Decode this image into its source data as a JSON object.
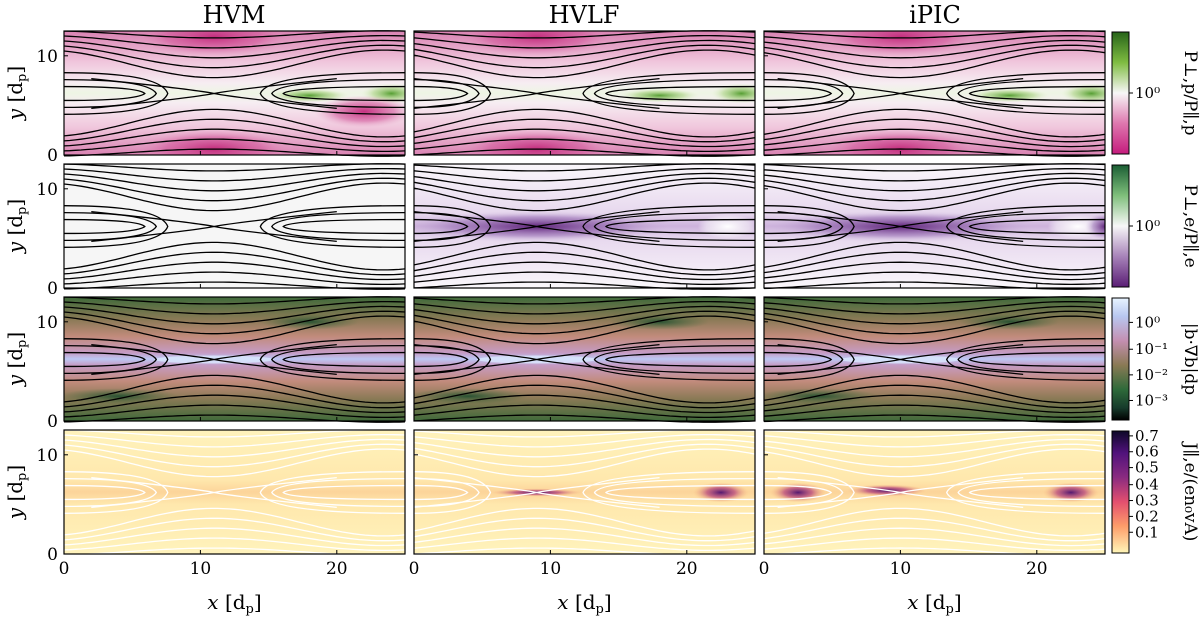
{
  "figure": {
    "columns": [
      "HVM",
      "HVLF",
      "iPIC"
    ],
    "x_label": "x   [d_p]",
    "y_label": "y   [d_p]",
    "x_axis_label": {
      "var": "x",
      "unit": "[d",
      "unit_sub": "p",
      "unit_close": "]"
    },
    "y_axis_label": {
      "var": "y",
      "unit": "[d",
      "unit_sub": "p",
      "unit_close": "]"
    }
  },
  "chart_data": {
    "type": "heatmap",
    "layout": "4 rows x 3 columns of 2D field maps with magnetic field lines",
    "xlim": [
      0,
      25
    ],
    "ylim": [
      0,
      12.5
    ],
    "x_ticks": [
      "0",
      "10",
      "20"
    ],
    "y_ticks": [
      "0",
      "10"
    ],
    "x_tick_values": [
      0,
      10,
      20
    ],
    "y_tick_values": [
      0,
      10
    ],
    "rows": [
      {
        "quantity": "P_perp,p / P_par,p",
        "colorbar_label": "P⊥,p/P∥,p",
        "colormap": "PiYG (pink-white-green)",
        "scale": "log",
        "colorbar_ticks": [
          "10⁰"
        ],
        "colorbar_tick_values": [
          1
        ],
        "line_color": "black",
        "field_lines_per_panel": 12
      },
      {
        "quantity": "P_perp,e / P_par,e",
        "colorbar_label": "P⊥,e/P∥,e",
        "colormap": "PRGn (purple-white-green)",
        "scale": "log",
        "colorbar_ticks": [
          "10⁰"
        ],
        "colorbar_tick_values": [
          1
        ],
        "line_color": "black",
        "field_lines_per_panel": 12
      },
      {
        "quantity": "|b · grad b| d_p",
        "colorbar_label": "|b·∇b|dp",
        "colormap": "cubehelix-like",
        "scale": "log",
        "colorbar_ticks": [
          "10⁰",
          "10⁻¹",
          "10⁻²",
          "10⁻³"
        ],
        "colorbar_tick_values": [
          1,
          0.1,
          0.01,
          0.001
        ],
        "line_color": "black",
        "field_lines_per_panel": 12
      },
      {
        "quantity": "J_II,e / (e n0 vA)",
        "colorbar_label": "J∥,e/(en₀vA)",
        "colormap": "magma_r",
        "scale": "linear",
        "colorbar_ticks": [
          "0.7",
          "0.6",
          "0.5",
          "0.4",
          "0.3",
          "0.2",
          "0.1"
        ],
        "colorbar_tick_values": [
          0.7,
          0.6,
          0.5,
          0.4,
          0.3,
          0.2,
          0.1
        ],
        "line_color": "white",
        "field_lines_per_panel": 12
      }
    ],
    "x_point_location_x": {
      "HVM": 11,
      "HVLF": 9,
      "iPIC": 10
    },
    "o_point_location": {
      "x": 24,
      "y": 6.2
    }
  }
}
